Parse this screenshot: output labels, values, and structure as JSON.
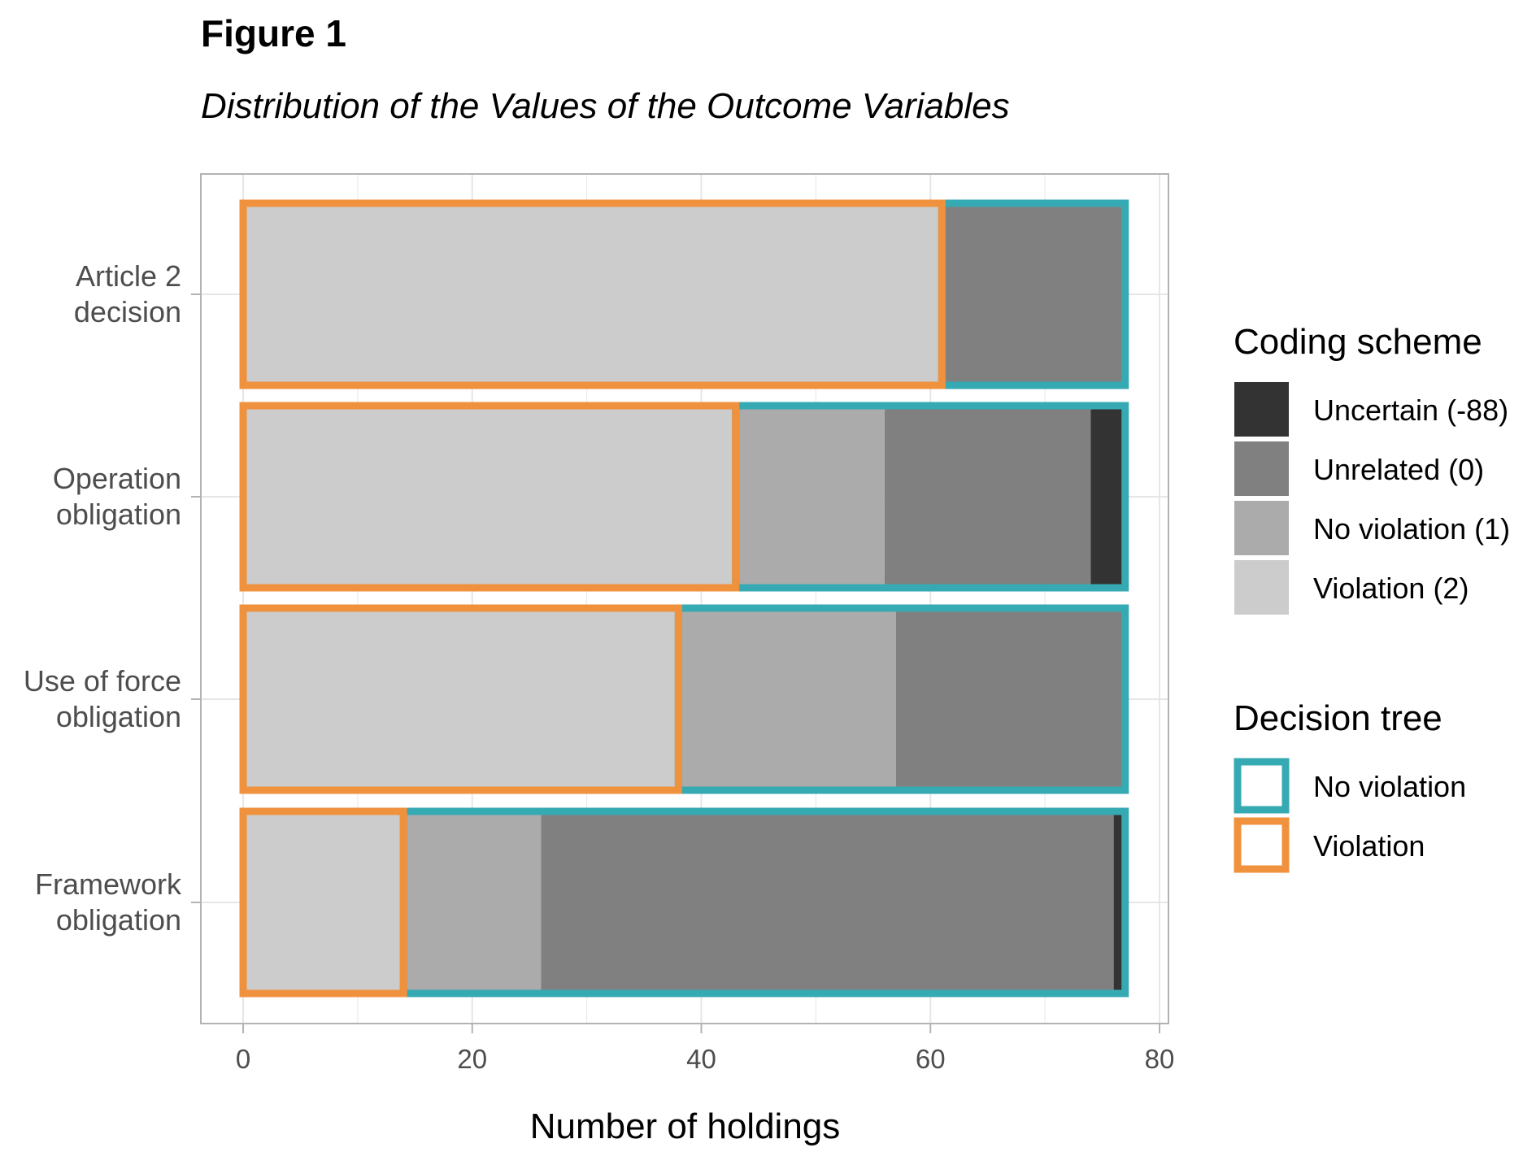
{
  "figure": {
    "label": "Figure 1",
    "title": "Distribution of the Values of the Outcome Variables"
  },
  "colors": {
    "uncertain": "#333333",
    "unrelated": "#808080",
    "no_violation": "#ababab",
    "violation": "#cccccc",
    "tree_no_violation": "#36aab3",
    "tree_violation": "#f0913d",
    "grid": "#e6e6e6",
    "panel_border": "#b3b3b3"
  },
  "chart_data": {
    "type": "bar",
    "orientation": "horizontal",
    "stacked": true,
    "categories": [
      [
        "Article 2",
        "decision"
      ],
      [
        "Operation",
        "obligation"
      ],
      [
        "Use of force",
        "obligation"
      ],
      [
        "Framework",
        "obligation"
      ]
    ],
    "series": [
      {
        "name": "Violation (2)",
        "key": "violation",
        "values": [
          61,
          43,
          38,
          14
        ]
      },
      {
        "name": "No violation (1)",
        "key": "no_violation",
        "values": [
          0,
          13,
          19,
          12
        ]
      },
      {
        "name": "Unrelated (0)",
        "key": "unrelated",
        "values": [
          16,
          18,
          20,
          50
        ]
      },
      {
        "name": "Uncertain (-88)",
        "key": "uncertain",
        "values": [
          0,
          3,
          0,
          1
        ]
      }
    ],
    "decision_tree": [
      {
        "name": "Violation",
        "key": "tree_violation",
        "values": [
          61,
          43,
          38,
          14
        ]
      },
      {
        "name": "No violation",
        "key": "tree_no_violation",
        "values": [
          16,
          34,
          39,
          63
        ]
      }
    ],
    "xlabel": "Number of holdings",
    "xlim": [
      0,
      80
    ],
    "xticks": [
      0,
      20,
      40,
      60,
      80
    ],
    "grid": true,
    "legend_position": "right",
    "legends": [
      {
        "title": "Coding scheme",
        "items": [
          {
            "label": "Uncertain (-88)",
            "key": "uncertain"
          },
          {
            "label": "Unrelated (0)",
            "key": "unrelated"
          },
          {
            "label": "No violation (1)",
            "key": "no_violation"
          },
          {
            "label": "Violation (2)",
            "key": "violation"
          }
        ]
      },
      {
        "title": "Decision tree",
        "items": [
          {
            "label": "No violation",
            "key": "tree_no_violation"
          },
          {
            "label": "Violation",
            "key": "tree_violation"
          }
        ]
      }
    ]
  }
}
